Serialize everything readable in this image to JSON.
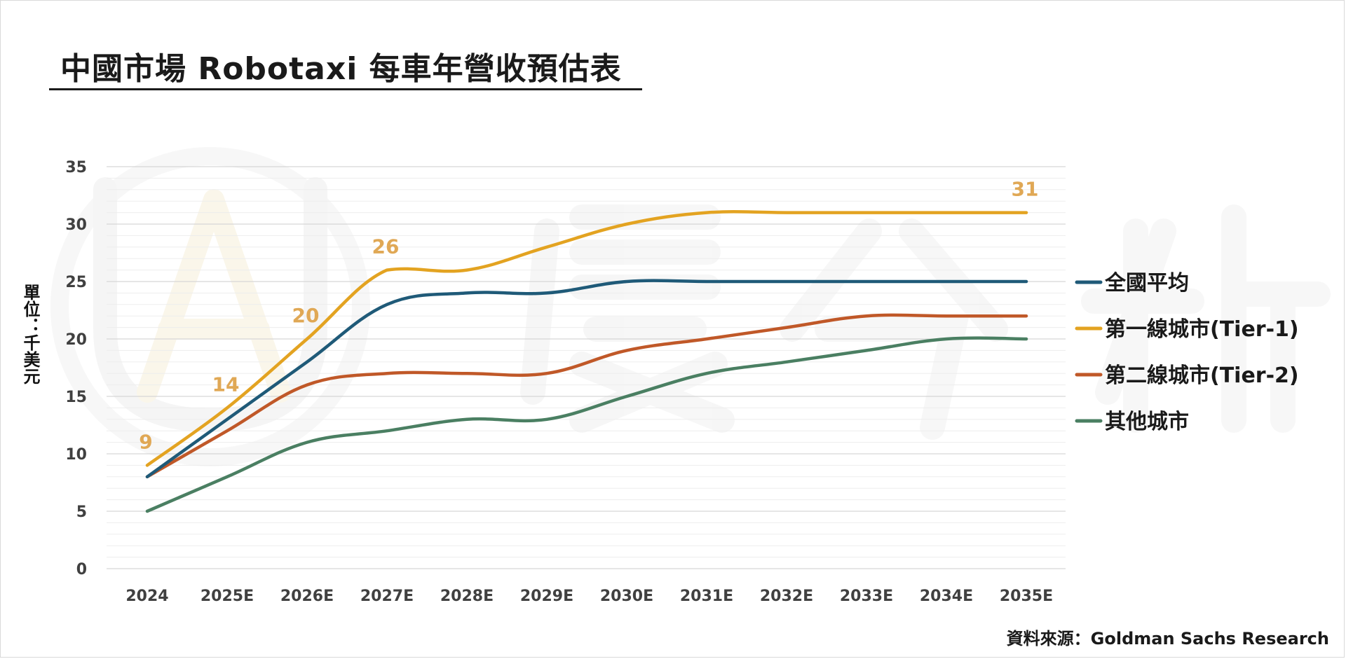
{
  "title": "中國市場 Robotaxi 每車年營收預估表",
  "source": "資料來源：Goldman Sachs Research",
  "chart_data": {
    "type": "line",
    "title": "中國市場 Robotaxi 每車年營收預估表",
    "ylabel": "單位：千美元",
    "xlabel": "",
    "categories": [
      "2024",
      "2025E",
      "2026E",
      "2027E",
      "2028E",
      "2029E",
      "2030E",
      "2031E",
      "2032E",
      "2033E",
      "2034E",
      "2035E"
    ],
    "ylim": [
      0,
      35
    ],
    "yticks": [
      0,
      5,
      10,
      15,
      20,
      25,
      30,
      35
    ],
    "minor_gridlines": true,
    "legend_position": "right",
    "series": [
      {
        "name": "全國平均",
        "color": "#1f5a78",
        "values": [
          8,
          13,
          18,
          23,
          24,
          24,
          25,
          25,
          25,
          25,
          25,
          25
        ]
      },
      {
        "name": "第一線城市(Tier-1)",
        "color": "#e3a321",
        "values": [
          9,
          14,
          20,
          26,
          26,
          28,
          30,
          31,
          31,
          31,
          31,
          31
        ]
      },
      {
        "name": "第二線城市(Tier-2)",
        "color": "#c05828",
        "values": [
          8,
          12,
          16,
          17,
          17,
          17,
          19,
          20,
          21,
          22,
          22,
          22
        ]
      },
      {
        "name": "其他城市",
        "color": "#4a7f62",
        "values": [
          5,
          8,
          11,
          12,
          13,
          13,
          15,
          17,
          18,
          19,
          20,
          20
        ]
      }
    ],
    "data_labels": [
      {
        "series": 1,
        "index": 0,
        "text": "9"
      },
      {
        "series": 1,
        "index": 1,
        "text": "14"
      },
      {
        "series": 1,
        "index": 2,
        "text": "20"
      },
      {
        "series": 1,
        "index": 3,
        "text": "26"
      },
      {
        "series": 1,
        "index": 11,
        "text": "31"
      }
    ],
    "label_color": "#e0a855"
  }
}
